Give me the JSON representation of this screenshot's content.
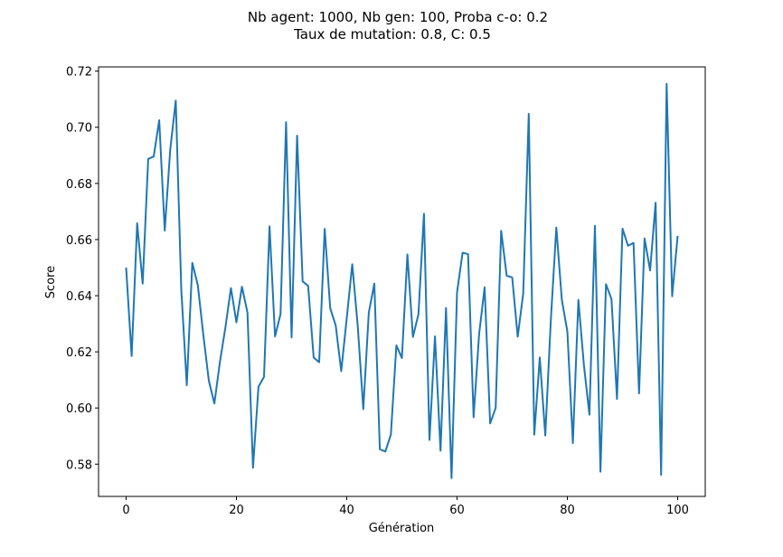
{
  "chart_data": {
    "type": "line",
    "title": [
      "Nb agent: 1000, Nb gen: 100, Proba c-o: 0.2",
      "Taux de mutation: 0.8, C: 0.5"
    ],
    "xlabel": "Génération",
    "ylabel": "Score",
    "xlim": [
      -5,
      105
    ],
    "ylim": [
      0.5685,
      0.7215
    ],
    "x_ticks": [
      0,
      20,
      40,
      60,
      80,
      100
    ],
    "x_tick_labels": [
      "0",
      "20",
      "40",
      "60",
      "80",
      "100"
    ],
    "y_ticks": [
      0.58,
      0.6,
      0.62,
      0.64,
      0.66,
      0.68,
      0.7,
      0.72
    ],
    "y_tick_labels": [
      "0.58",
      "0.60",
      "0.62",
      "0.64",
      "0.66",
      "0.68",
      "0.70",
      "0.72"
    ],
    "grid": false,
    "series": [
      {
        "color": "#1f77b4",
        "x_start": 0,
        "x_step": 1,
        "values": [
          0.65,
          0.6185,
          0.6658,
          0.6443,
          0.6887,
          0.6896,
          0.7025,
          0.6632,
          0.6921,
          0.7095,
          0.6422,
          0.6081,
          0.6517,
          0.6437,
          0.626,
          0.6097,
          0.6016,
          0.6163,
          0.6287,
          0.6427,
          0.6305,
          0.6432,
          0.634,
          0.5787,
          0.6076,
          0.6111,
          0.6647,
          0.6255,
          0.6335,
          0.7018,
          0.6251,
          0.697,
          0.6451,
          0.6435,
          0.618,
          0.6163,
          0.6638,
          0.6356,
          0.6294,
          0.6131,
          0.632,
          0.6512,
          0.6291,
          0.5996,
          0.634,
          0.6443,
          0.5853,
          0.5845,
          0.5905,
          0.6223,
          0.6178,
          0.6547,
          0.6253,
          0.6334,
          0.6692,
          0.5886,
          0.6255,
          0.5848,
          0.6356,
          0.575,
          0.6412,
          0.6553,
          0.6548,
          0.5967,
          0.6263,
          0.643,
          0.5945,
          0.6,
          0.6631,
          0.6471,
          0.6465,
          0.6254,
          0.6408,
          0.7048,
          0.5905,
          0.618,
          0.5902,
          0.6312,
          0.6643,
          0.6385,
          0.6273,
          0.5875,
          0.6385,
          0.6153,
          0.5976,
          0.6649,
          0.5773,
          0.6441,
          0.6388,
          0.6032,
          0.6639,
          0.6578,
          0.6588,
          0.6052,
          0.6604,
          0.649,
          0.6731,
          0.5762,
          0.7155,
          0.6398,
          0.6613
        ]
      }
    ]
  }
}
